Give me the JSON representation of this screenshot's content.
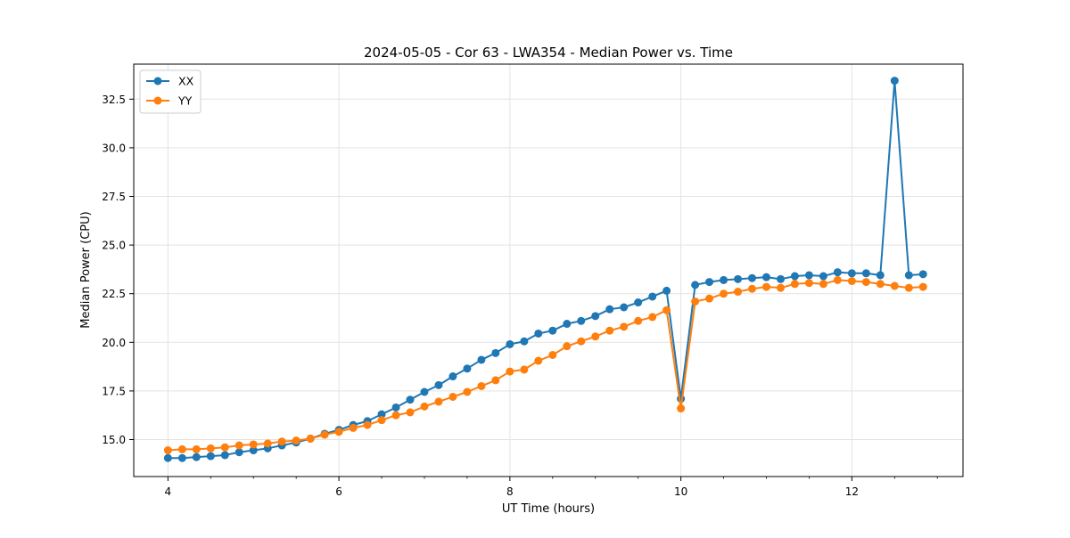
{
  "chart_data": {
    "type": "line",
    "title": "2024-05-05 - Cor 63 - LWA354 - Median Power vs. Time",
    "xlabel": "UT Time (hours)",
    "ylabel": "Median Power (CPU)",
    "xlim": [
      3.6,
      13.3
    ],
    "ylim": [
      13.1,
      34.3
    ],
    "xticks": [
      4,
      6,
      8,
      10,
      12
    ],
    "xtick_labels": [
      "4",
      "6",
      "8",
      "10",
      "12"
    ],
    "xminor_step": 0.5,
    "yticks": [
      15,
      17.5,
      20,
      22.5,
      25,
      27.5,
      30,
      32.5
    ],
    "ytick_labels": [
      "15.0",
      "17.5",
      "20.0",
      "22.5",
      "25.0",
      "27.5",
      "30.0",
      "32.5"
    ],
    "grid": true,
    "legend_position": "top-left",
    "x": [
      4.0,
      4.167,
      4.333,
      4.5,
      4.667,
      4.833,
      5.0,
      5.167,
      5.333,
      5.5,
      5.667,
      5.833,
      6.0,
      6.167,
      6.333,
      6.5,
      6.667,
      6.833,
      7.0,
      7.167,
      7.333,
      7.5,
      7.667,
      7.833,
      8.0,
      8.167,
      8.333,
      8.5,
      8.667,
      8.833,
      9.0,
      9.167,
      9.333,
      9.5,
      9.667,
      9.833,
      10.0,
      10.167,
      10.333,
      10.5,
      10.667,
      10.833,
      11.0,
      11.167,
      11.333,
      11.5,
      11.667,
      11.833,
      12.0,
      12.167,
      12.333,
      12.5,
      12.667,
      12.833
    ],
    "series": [
      {
        "name": "XX",
        "color": "#1f77b4",
        "values": [
          14.05,
          14.05,
          14.1,
          14.15,
          14.2,
          14.35,
          14.45,
          14.55,
          14.7,
          14.85,
          15.05,
          15.3,
          15.5,
          15.75,
          15.95,
          16.3,
          16.65,
          17.05,
          17.45,
          17.8,
          18.25,
          18.65,
          19.1,
          19.45,
          19.9,
          20.05,
          20.45,
          20.6,
          20.95,
          21.1,
          21.35,
          21.7,
          21.8,
          22.05,
          22.35,
          22.65,
          17.1,
          22.95,
          23.1,
          23.2,
          23.25,
          23.3,
          23.35,
          23.25,
          23.4,
          23.45,
          23.4,
          23.6,
          23.55,
          23.55,
          23.45,
          33.45,
          23.45,
          23.5
        ]
      },
      {
        "name": "YY",
        "color": "#ff7f0e",
        "values": [
          14.45,
          14.5,
          14.5,
          14.55,
          14.6,
          14.7,
          14.75,
          14.8,
          14.9,
          14.95,
          15.05,
          15.25,
          15.4,
          15.6,
          15.75,
          16.0,
          16.25,
          16.4,
          16.7,
          16.95,
          17.2,
          17.45,
          17.75,
          18.05,
          18.5,
          18.6,
          19.05,
          19.35,
          19.8,
          20.05,
          20.3,
          20.6,
          20.8,
          21.1,
          21.3,
          21.65,
          16.6,
          22.1,
          22.25,
          22.5,
          22.6,
          22.75,
          22.85,
          22.8,
          23.0,
          23.05,
          23.0,
          23.2,
          23.15,
          23.1,
          23.0,
          22.9,
          22.8,
          22.85
        ]
      }
    ]
  }
}
